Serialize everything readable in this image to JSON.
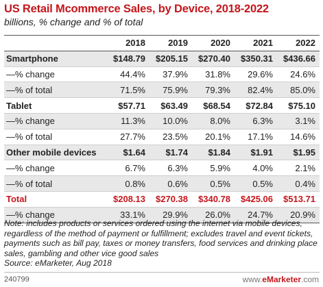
{
  "title": "US Retail Mcommerce Sales, by Device, 2018-2022",
  "subtitle": "billions, % change and % of total",
  "chart_data": {
    "type": "table",
    "columns": [
      "2018",
      "2019",
      "2020",
      "2021",
      "2022"
    ],
    "rows": [
      {
        "label": "Smartphone",
        "kind": "major",
        "cells": [
          "$148.79",
          "$205.15",
          "$270.40",
          "$350.31",
          "$436.66"
        ]
      },
      {
        "label": "—% change",
        "kind": "sub",
        "cells": [
          "44.4%",
          "37.9%",
          "31.8%",
          "29.6%",
          "24.6%"
        ]
      },
      {
        "label": "—% of total",
        "kind": "sub",
        "cells": [
          "71.5%",
          "75.9%",
          "79.3%",
          "82.4%",
          "85.0%"
        ]
      },
      {
        "label": "Tablet",
        "kind": "major",
        "cells": [
          "$57.71",
          "$63.49",
          "$68.54",
          "$72.84",
          "$75.10"
        ]
      },
      {
        "label": "—% change",
        "kind": "sub",
        "cells": [
          "11.3%",
          "10.0%",
          "8.0%",
          "6.3%",
          "3.1%"
        ]
      },
      {
        "label": "—% of total",
        "kind": "sub",
        "cells": [
          "27.7%",
          "23.5%",
          "20.1%",
          "17.1%",
          "14.6%"
        ]
      },
      {
        "label": "Other mobile devices",
        "kind": "major",
        "cells": [
          "$1.64",
          "$1.74",
          "$1.84",
          "$1.91",
          "$1.95"
        ]
      },
      {
        "label": "—% change",
        "kind": "sub",
        "cells": [
          "6.7%",
          "6.3%",
          "5.9%",
          "4.0%",
          "2.1%"
        ]
      },
      {
        "label": "—% of total",
        "kind": "sub",
        "cells": [
          "0.8%",
          "0.6%",
          "0.5%",
          "0.5%",
          "0.4%"
        ]
      },
      {
        "label": "Total",
        "kind": "total",
        "cells": [
          "$208.13",
          "$270.38",
          "$340.78",
          "$425.06",
          "$513.71"
        ]
      },
      {
        "label": "—% change",
        "kind": "sub",
        "cells": [
          "33.1%",
          "29.9%",
          "26.0%",
          "24.7%",
          "20.9%"
        ]
      }
    ]
  },
  "note": "Note: includes products or services ordered using the internet via mobile devices, regardless of the method of payment or fulfillment; excludes travel and event tickets, payments such as bill pay, taxes or money transfers, food services and drinking place sales, gambling and other vice good sales",
  "source": "Source: eMarketer, Aug 2018",
  "footer": {
    "code": "240799",
    "brand_prefix": "www.",
    "brand_name": "eMarketer",
    "brand_suffix": ".com"
  },
  "colors": {
    "accent": "#c4161c",
    "row_shade": "#e8e8e8"
  }
}
